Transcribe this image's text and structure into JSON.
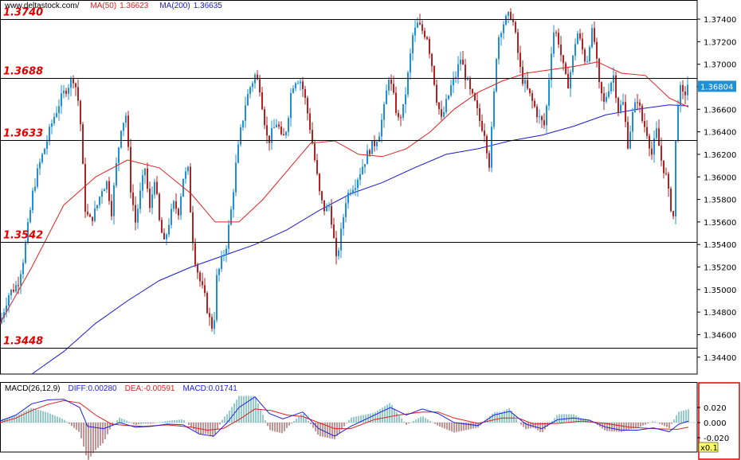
{
  "header": {
    "site": "www.deltastock.com/",
    "ma50_label": "MA(50)",
    "ma50_value": "1.36623",
    "ma200_label": "MA(200)",
    "ma200_value": "1.36635"
  },
  "colors": {
    "bull": "#1e90d8",
    "bear": "#b22222",
    "ma50": "#e02020",
    "ma200": "#1a1ad0",
    "level_text": "#e00000",
    "diff": "#2020e0",
    "dea": "#e02020",
    "macd_pos": "#2a9a9a",
    "macd_neg": "#8b2a2a"
  },
  "levels": [
    {
      "value": 1.374,
      "label": "1.3740"
    },
    {
      "value": 1.3688,
      "label": "1.3688"
    },
    {
      "value": 1.3633,
      "label": "1.3633"
    },
    {
      "value": 1.3542,
      "label": "1.3542"
    },
    {
      "value": 1.3448,
      "label": "1.3448"
    }
  ],
  "price_axis": {
    "ticks": [
      "1.34400",
      "1.34600",
      "1.34800",
      "1.35000",
      "1.35200",
      "1.35400",
      "1.35600",
      "1.35800",
      "1.36000",
      "1.36200",
      "1.36400",
      "1.36600",
      "1.36800",
      "1.37000",
      "1.37200",
      "1.37400"
    ],
    "current": "1.36804"
  },
  "macd": {
    "label": "MACD(26,12,9)",
    "diff_label": "DIFF:0.00280",
    "dea_label": "DEA:-0.00591",
    "macd_label": "MACD:0.01741",
    "ticks": [
      "0.020",
      "0.000",
      "-0.020"
    ],
    "scale_label": "x0.1"
  },
  "chart_data": {
    "type": "candlestick",
    "ylim": [
      1.3425,
      1.3757
    ],
    "anchors": [
      [
        0,
        1.347
      ],
      [
        10,
        1.3495
      ],
      [
        22,
        1.3505
      ],
      [
        30,
        1.353
      ],
      [
        36,
        1.356
      ],
      [
        42,
        1.359
      ],
      [
        50,
        1.3612
      ],
      [
        58,
        1.363
      ],
      [
        66,
        1.365
      ],
      [
        74,
        1.3665
      ],
      [
        84,
        1.368
      ],
      [
        92,
        1.3688
      ],
      [
        97,
        1.3675
      ],
      [
        102,
        1.364
      ],
      [
        106,
        1.3575
      ],
      [
        112,
        1.356
      ],
      [
        120,
        1.357
      ],
      [
        128,
        1.359
      ],
      [
        134,
        1.3595
      ],
      [
        140,
        1.357
      ],
      [
        146,
        1.361
      ],
      [
        152,
        1.3645
      ],
      [
        158,
        1.3655
      ],
      [
        164,
        1.359
      ],
      [
        170,
        1.356
      ],
      [
        176,
        1.3585
      ],
      [
        182,
        1.3608
      ],
      [
        188,
        1.357
      ],
      [
        194,
        1.36
      ],
      [
        200,
        1.356
      ],
      [
        206,
        1.354
      ],
      [
        212,
        1.356
      ],
      [
        218,
        1.3575
      ],
      [
        224,
        1.357
      ],
      [
        230,
        1.36
      ],
      [
        236,
        1.3605
      ],
      [
        240,
        1.356
      ],
      [
        244,
        1.353
      ],
      [
        250,
        1.351
      ],
      [
        258,
        1.349
      ],
      [
        264,
        1.347
      ],
      [
        268,
        1.3465
      ],
      [
        272,
        1.351
      ],
      [
        278,
        1.3525
      ],
      [
        284,
        1.354
      ],
      [
        290,
        1.357
      ],
      [
        296,
        1.361
      ],
      [
        302,
        1.364
      ],
      [
        308,
        1.3665
      ],
      [
        314,
        1.368
      ],
      [
        320,
        1.369
      ],
      [
        326,
        1.368
      ],
      [
        332,
        1.365
      ],
      [
        336,
        1.363
      ],
      [
        342,
        1.364
      ],
      [
        348,
        1.365
      ],
      [
        354,
        1.363
      ],
      [
        360,
        1.3645
      ],
      [
        366,
        1.368
      ],
      [
        372,
        1.3688
      ],
      [
        378,
        1.3685
      ],
      [
        384,
        1.3665
      ],
      [
        390,
        1.364
      ],
      [
        396,
        1.361
      ],
      [
        402,
        1.358
      ],
      [
        408,
        1.357
      ],
      [
        414,
        1.3575
      ],
      [
        418,
        1.355
      ],
      [
        422,
        1.3525
      ],
      [
        428,
        1.355
      ],
      [
        434,
        1.358
      ],
      [
        440,
        1.359
      ],
      [
        446,
        1.3595
      ],
      [
        452,
        1.3605
      ],
      [
        458,
        1.3615
      ],
      [
        464,
        1.3625
      ],
      [
        470,
        1.363
      ],
      [
        476,
        1.364
      ],
      [
        482,
        1.366
      ],
      [
        488,
        1.369
      ],
      [
        494,
        1.367
      ],
      [
        500,
        1.365
      ],
      [
        506,
        1.366
      ],
      [
        512,
        1.369
      ],
      [
        518,
        1.3725
      ],
      [
        524,
        1.3735
      ],
      [
        530,
        1.373
      ],
      [
        536,
        1.3725
      ],
      [
        542,
        1.37
      ],
      [
        548,
        1.367
      ],
      [
        554,
        1.365
      ],
      [
        560,
        1.3665
      ],
      [
        566,
        1.368
      ],
      [
        572,
        1.369
      ],
      [
        578,
        1.3705
      ],
      [
        584,
        1.369
      ],
      [
        590,
        1.3675
      ],
      [
        596,
        1.3665
      ],
      [
        602,
        1.365
      ],
      [
        608,
        1.364
      ],
      [
        614,
        1.3612
      ],
      [
        618,
        1.365
      ],
      [
        624,
        1.372
      ],
      [
        630,
        1.3735
      ],
      [
        636,
        1.374
      ],
      [
        642,
        1.3745
      ],
      [
        648,
        1.372
      ],
      [
        654,
        1.369
      ],
      [
        660,
        1.368
      ],
      [
        666,
        1.367
      ],
      [
        672,
        1.366
      ],
      [
        678,
        1.365
      ],
      [
        684,
        1.3645
      ],
      [
        688,
        1.368
      ],
      [
        694,
        1.373
      ],
      [
        700,
        1.3725
      ],
      [
        706,
        1.37
      ],
      [
        712,
        1.368
      ],
      [
        718,
        1.37
      ],
      [
        724,
        1.373
      ],
      [
        730,
        1.3715
      ],
      [
        736,
        1.37
      ],
      [
        742,
        1.373
      ],
      [
        746,
        1.372
      ],
      [
        752,
        1.368
      ],
      [
        758,
        1.3665
      ],
      [
        764,
        1.368
      ],
      [
        770,
        1.369
      ],
      [
        776,
        1.366
      ],
      [
        782,
        1.3665
      ],
      [
        788,
        1.363
      ],
      [
        794,
        1.3655
      ],
      [
        800,
        1.367
      ],
      [
        806,
        1.365
      ],
      [
        812,
        1.364
      ],
      [
        818,
        1.362
      ],
      [
        824,
        1.364
      ],
      [
        830,
        1.3615
      ],
      [
        836,
        1.36
      ],
      [
        840,
        1.358
      ],
      [
        845,
        1.3565
      ],
      [
        848,
        1.363
      ],
      [
        852,
        1.368
      ],
      [
        858,
        1.367
      ],
      [
        864,
        1.3685
      ]
    ],
    "ma50_points": [
      [
        0,
        1.347
      ],
      [
        40,
        1.352
      ],
      [
        80,
        1.3575
      ],
      [
        120,
        1.36
      ],
      [
        160,
        1.3615
      ],
      [
        200,
        1.3608
      ],
      [
        240,
        1.3585
      ],
      [
        270,
        1.356
      ],
      [
        300,
        1.356
      ],
      [
        330,
        1.358
      ],
      [
        360,
        1.3605
      ],
      [
        390,
        1.363
      ],
      [
        420,
        1.3632
      ],
      [
        450,
        1.362
      ],
      [
        480,
        1.3618
      ],
      [
        510,
        1.3625
      ],
      [
        540,
        1.364
      ],
      [
        570,
        1.366
      ],
      [
        600,
        1.3675
      ],
      [
        630,
        1.3685
      ],
      [
        660,
        1.3692
      ],
      [
        690,
        1.3695
      ],
      [
        720,
        1.3698
      ],
      [
        750,
        1.3702
      ],
      [
        780,
        1.3692
      ],
      [
        810,
        1.369
      ],
      [
        840,
        1.367
      ],
      [
        864,
        1.3662
      ]
    ],
    "ma200_points": [
      [
        40,
        1.3425
      ],
      [
        80,
        1.3445
      ],
      [
        120,
        1.347
      ],
      [
        160,
        1.349
      ],
      [
        200,
        1.3508
      ],
      [
        240,
        1.352
      ],
      [
        280,
        1.353
      ],
      [
        320,
        1.354
      ],
      [
        360,
        1.3553
      ],
      [
        400,
        1.357
      ],
      [
        440,
        1.3585
      ],
      [
        480,
        1.3595
      ],
      [
        520,
        1.3608
      ],
      [
        560,
        1.362
      ],
      [
        600,
        1.3625
      ],
      [
        640,
        1.3632
      ],
      [
        680,
        1.3637
      ],
      [
        720,
        1.3645
      ],
      [
        760,
        1.3655
      ],
      [
        800,
        1.366
      ],
      [
        840,
        1.3664
      ],
      [
        864,
        1.3663
      ]
    ],
    "macd_diff_points": [
      [
        0,
        0.002
      ],
      [
        20,
        0.01
      ],
      [
        40,
        0.025
      ],
      [
        60,
        0.03
      ],
      [
        80,
        0.031
      ],
      [
        100,
        0.02
      ],
      [
        110,
        -0.005
      ],
      [
        130,
        -0.008
      ],
      [
        150,
        0.0
      ],
      [
        170,
        -0.006
      ],
      [
        190,
        -0.005
      ],
      [
        210,
        -0.002
      ],
      [
        230,
        -0.003
      ],
      [
        250,
        -0.015
      ],
      [
        268,
        -0.018
      ],
      [
        285,
        0.0
      ],
      [
        300,
        0.02
      ],
      [
        320,
        0.034
      ],
      [
        338,
        0.012
      ],
      [
        355,
        0.005
      ],
      [
        380,
        0.014
      ],
      [
        400,
        -0.008
      ],
      [
        420,
        -0.018
      ],
      [
        440,
        -0.005
      ],
      [
        460,
        0.005
      ],
      [
        490,
        0.02
      ],
      [
        510,
        0.01
      ],
      [
        530,
        0.018
      ],
      [
        550,
        0.012
      ],
      [
        570,
        0.0
      ],
      [
        600,
        -0.004
      ],
      [
        620,
        0.01
      ],
      [
        640,
        0.015
      ],
      [
        660,
        -0.002
      ],
      [
        680,
        -0.008
      ],
      [
        700,
        0.004
      ],
      [
        720,
        0.006
      ],
      [
        740,
        0.003
      ],
      [
        760,
        -0.006
      ],
      [
        780,
        -0.01
      ],
      [
        800,
        -0.01
      ],
      [
        820,
        -0.007
      ],
      [
        840,
        -0.012
      ],
      [
        852,
        -0.002
      ],
      [
        864,
        0.002
      ]
    ],
    "macd_dea_points": [
      [
        0,
        0.0
      ],
      [
        20,
        0.006
      ],
      [
        40,
        0.016
      ],
      [
        60,
        0.024
      ],
      [
        80,
        0.029
      ],
      [
        100,
        0.026
      ],
      [
        120,
        0.01
      ],
      [
        140,
        -0.002
      ],
      [
        160,
        -0.004
      ],
      [
        180,
        -0.005
      ],
      [
        210,
        -0.003
      ],
      [
        240,
        -0.006
      ],
      [
        260,
        -0.01
      ],
      [
        280,
        -0.008
      ],
      [
        300,
        0.004
      ],
      [
        320,
        0.018
      ],
      [
        340,
        0.016
      ],
      [
        360,
        0.01
      ],
      [
        380,
        0.008
      ],
      [
        400,
        0.0
      ],
      [
        420,
        -0.008
      ],
      [
        440,
        -0.008
      ],
      [
        470,
        0.004
      ],
      [
        500,
        0.01
      ],
      [
        530,
        0.014
      ],
      [
        550,
        0.014
      ],
      [
        570,
        0.006
      ],
      [
        600,
        -0.001
      ],
      [
        630,
        0.006
      ],
      [
        650,
        0.006
      ],
      [
        670,
        -0.002
      ],
      [
        700,
        -0.001
      ],
      [
        730,
        0.002
      ],
      [
        760,
        -0.001
      ],
      [
        790,
        -0.006
      ],
      [
        820,
        -0.008
      ],
      [
        850,
        -0.009
      ],
      [
        864,
        -0.006
      ]
    ]
  }
}
